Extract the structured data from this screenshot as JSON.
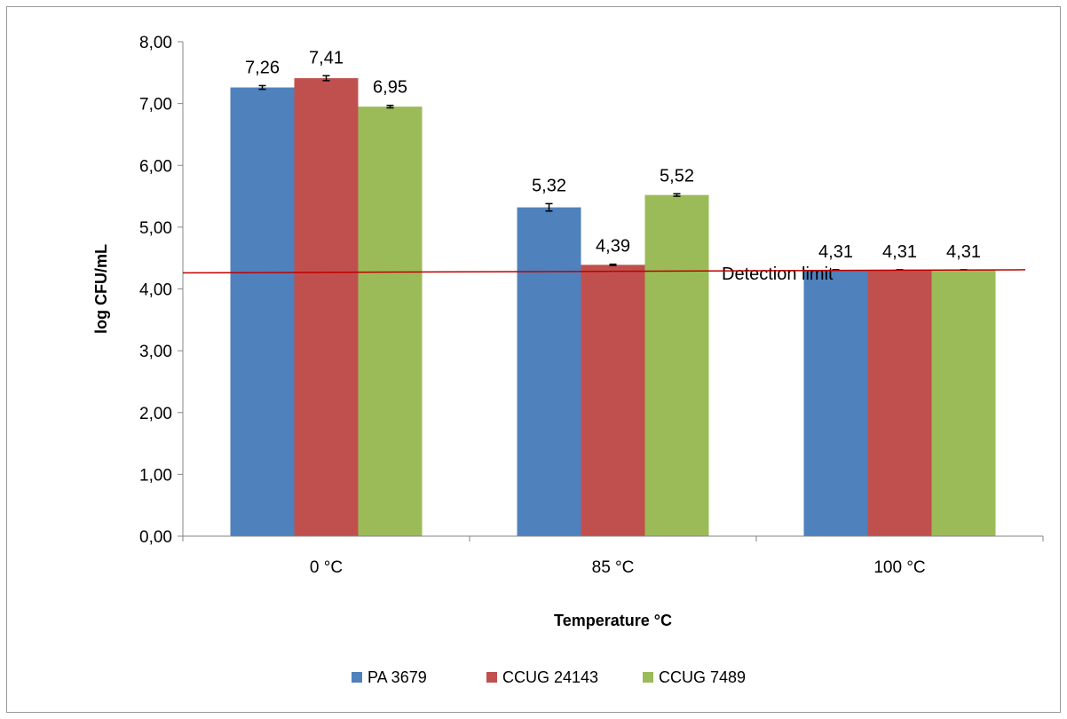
{
  "chart_data": {
    "type": "bar",
    "categories": [
      "0 °C",
      "85 °C",
      "100 °C"
    ],
    "series": [
      {
        "name": "PA 3679",
        "values": [
          7.26,
          5.32,
          4.31
        ],
        "errors": [
          0.03,
          0.06,
          0.0
        ],
        "labels": [
          "7,26",
          "5,32",
          "4,31"
        ],
        "color": "#4f81bd"
      },
      {
        "name": "CCUG 24143",
        "values": [
          7.41,
          4.39,
          4.31
        ],
        "errors": [
          0.04,
          0.01,
          0.0
        ],
        "labels": [
          "7,41",
          "4,39",
          "4,31"
        ],
        "color": "#c0504d"
      },
      {
        "name": "CCUG 7489",
        "values": [
          6.95,
          5.52,
          4.31
        ],
        "errors": [
          0.02,
          0.02,
          0.0
        ],
        "labels": [
          "6,95",
          "5,52",
          "4,31"
        ],
        "color": "#9bbb59"
      }
    ],
    "xlabel": "Temperature °C",
    "ylabel": "log CFU/mL",
    "ylim": [
      0,
      8
    ],
    "yticks": [
      0,
      1,
      2,
      3,
      4,
      5,
      6,
      7,
      8
    ],
    "ytick_labels": [
      "0,00",
      "1,00",
      "2,00",
      "3,00",
      "4,00",
      "5,00",
      "6,00",
      "7,00",
      "8,00"
    ],
    "grid": false,
    "legend_position": "bottom",
    "detection_limit": {
      "label": "Detection limit",
      "y_start": 4.26,
      "y_end": 4.31,
      "color": "#c00000"
    }
  }
}
